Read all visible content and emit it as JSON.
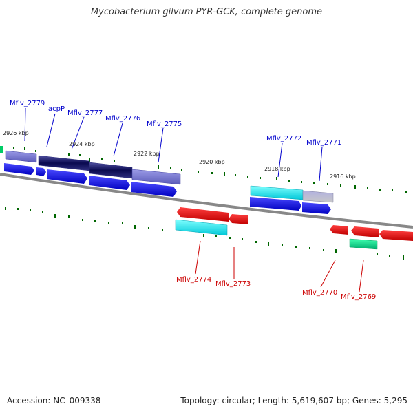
{
  "title": "Mycobacterium gilvum PYR-GCK, complete genome",
  "footer": {
    "accession": "Accession: NC_009338",
    "summary": "Topology: circular; Length: 5,619,607 bp; Genes: 5,295"
  },
  "colors": {
    "forward_label": "#0000cc",
    "reverse_label": "#cc0000",
    "backbone": "#888888",
    "tick": "#006600"
  },
  "scale_labels": [
    "2926 kbp",
    "2924 kbp",
    "2922 kbp",
    "2920 kbp",
    "2918 kbp",
    "2916 kbp"
  ],
  "genes": {
    "forward": [
      {
        "name": "Mflv_2779",
        "color": "#7070d0"
      },
      {
        "name": "acpP",
        "color": "#1a1a80"
      },
      {
        "name": "Mflv_2777",
        "color": "#1a1a80"
      },
      {
        "name": "Mflv_2776",
        "color": "#7070d0"
      },
      {
        "name": "Mflv_2775",
        "color": "#7070d0"
      },
      {
        "name": "Mflv_2772",
        "color": "#00dddd"
      },
      {
        "name": "Mflv_2771",
        "color": "#9a9ad0"
      }
    ],
    "reverse": [
      {
        "name": "Mflv_2774",
        "color": "#00dddd"
      },
      {
        "name": "Mflv_2773",
        "color": "#ee0000"
      },
      {
        "name": "Mflv_2770",
        "color": "#ee0000"
      },
      {
        "name": "Mflv_2769",
        "color": "#00cc88"
      }
    ]
  }
}
